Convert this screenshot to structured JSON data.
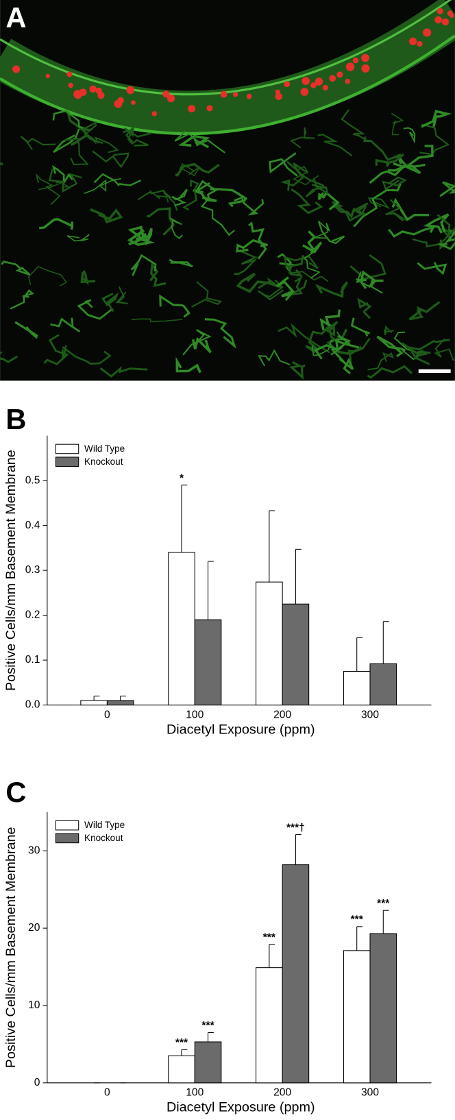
{
  "image_panel": {
    "label": "A"
  },
  "chart_data": [
    {
      "type": "bar",
      "panel_label": "B",
      "y_label": "Positive Cells/mm Basement Membrane",
      "x_label": "Diacetyl Exposure (ppm)",
      "categories": [
        "0",
        "100",
        "200",
        "300"
      ],
      "series": [
        {
          "name": "Wild Type",
          "color": "#ffffff",
          "values": [
            0.01,
            0.34,
            0.274,
            0.075
          ],
          "errors": [
            0.01,
            0.15,
            0.159,
            0.075
          ],
          "significance": [
            null,
            "*",
            null,
            null
          ]
        },
        {
          "name": "Knockout",
          "color": "#6b6b6b",
          "values": [
            0.01,
            0.19,
            0.225,
            0.092
          ],
          "errors": [
            0.01,
            0.13,
            0.122,
            0.094
          ],
          "significance": [
            null,
            null,
            null,
            null
          ]
        }
      ],
      "ylim": [
        0,
        0.6
      ],
      "yticks": [
        {
          "value": 0,
          "label": "0.0"
        },
        0.1,
        0.2,
        0.3,
        0.4,
        0.5
      ],
      "legend": "upper left"
    },
    {
      "type": "bar",
      "panel_label": "C",
      "y_label": "Positive Cells/mm Basement Membrane",
      "x_label": "Diacetyl Exposure (ppm)",
      "categories": [
        "0",
        "100",
        "200",
        "300"
      ],
      "series": [
        {
          "name": "Wild Type",
          "color": "#ffffff",
          "values": [
            0,
            3.5,
            14.9,
            17.1
          ],
          "errors": [
            0,
            0.8,
            3.0,
            3.1
          ],
          "significance": [
            null,
            "***",
            "***",
            "***"
          ]
        },
        {
          "name": "Knockout",
          "color": "#6b6b6b",
          "values": [
            0,
            5.3,
            28.2,
            19.3
          ],
          "errors": [
            0,
            1.2,
            3.9,
            3.0
          ],
          "significance": [
            null,
            "***",
            "***†",
            "***"
          ]
        }
      ],
      "ylim": [
        0,
        35
      ],
      "yticks": [
        0,
        10,
        20,
        30
      ],
      "legend": "upper left"
    }
  ]
}
